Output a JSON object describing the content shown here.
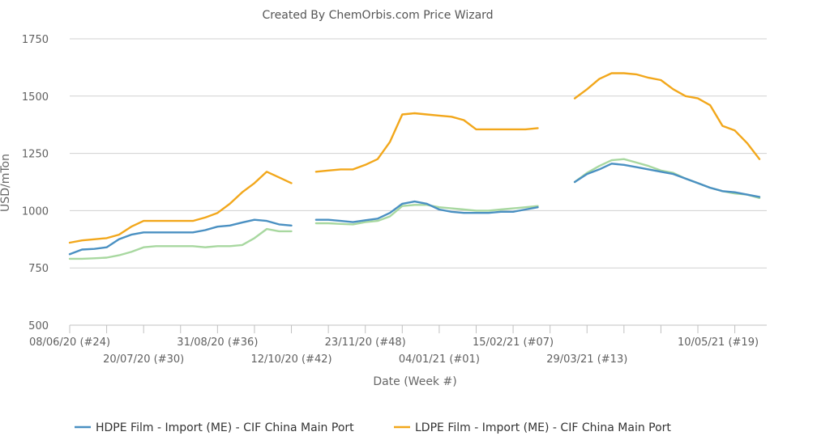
{
  "chart_data": {
    "type": "line",
    "title": "Created By ChemOrbis.com Price Wizard",
    "xlabel": "Date (Week #)",
    "ylabel": "USD/mTon",
    "ylim": [
      500,
      1750
    ],
    "yticks": [
      500,
      750,
      1000,
      1250,
      1500,
      1750
    ],
    "grid": true,
    "legend_position": "bottom",
    "x_tick_labels": [
      {
        "label": "08/06/20 (#24)",
        "week": 0,
        "row": 1
      },
      {
        "label": "20/07/20 (#30)",
        "week": 6,
        "row": 2
      },
      {
        "label": "31/08/20 (#36)",
        "week": 12,
        "row": 1
      },
      {
        "label": "12/10/20 (#42)",
        "week": 18,
        "row": 2
      },
      {
        "label": "23/11/20 (#48)",
        "week": 24,
        "row": 1
      },
      {
        "label": "04/01/21 (#01)",
        "week": 30,
        "row": 2
      },
      {
        "label": "15/02/21 (#07)",
        "week": 36,
        "row": 1
      },
      {
        "label": "29/03/21 (#13)",
        "week": 42,
        "row": 2
      },
      {
        "label": "10/05/21 (#19)",
        "week": 48,
        "row": 1
      }
    ],
    "series": [
      {
        "name": "HDPE Film - Import (ME) - CIF China Main Port",
        "color": "#4a90c2",
        "in_legend": true,
        "segments": [
          [
            [
              0,
              810
            ],
            [
              1,
              830
            ],
            [
              2,
              833
            ],
            [
              3,
              840
            ],
            [
              4,
              875
            ],
            [
              5,
              895
            ],
            [
              6,
              905
            ],
            [
              7,
              905
            ],
            [
              8,
              905
            ],
            [
              9,
              905
            ],
            [
              10,
              905
            ],
            [
              11,
              915
            ],
            [
              12,
              930
            ],
            [
              13,
              935
            ],
            [
              14,
              948
            ],
            [
              15,
              960
            ],
            [
              16,
              955
            ],
            [
              17,
              940
            ],
            [
              18,
              935
            ]
          ],
          [
            [
              20,
              960
            ],
            [
              21,
              960
            ],
            [
              22,
              955
            ],
            [
              23,
              950
            ],
            [
              24,
              958
            ],
            [
              25,
              965
            ],
            [
              26,
              990
            ],
            [
              27,
              1030
            ],
            [
              28,
              1040
            ],
            [
              29,
              1030
            ],
            [
              30,
              1005
            ],
            [
              31,
              995
            ],
            [
              32,
              990
            ],
            [
              33,
              990
            ],
            [
              34,
              990
            ],
            [
              35,
              995
            ],
            [
              36,
              995
            ],
            [
              37,
              1005
            ],
            [
              38,
              1015
            ]
          ],
          [
            [
              41,
              1125
            ],
            [
              42,
              1160
            ],
            [
              43,
              1180
            ],
            [
              44,
              1205
            ],
            [
              45,
              1200
            ],
            [
              46,
              1190
            ],
            [
              47,
              1180
            ],
            [
              48,
              1170
            ],
            [
              49,
              1160
            ],
            [
              50,
              1140
            ],
            [
              51,
              1120
            ],
            [
              52,
              1100
            ],
            [
              53,
              1085
            ],
            [
              54,
              1080
            ],
            [
              55,
              1070
            ],
            [
              56,
              1060
            ]
          ]
        ]
      },
      {
        "name": "LDPE Film - Import (ME) - CIF China Main Port",
        "color": "#f2a71b",
        "in_legend": true,
        "segments": [
          [
            [
              0,
              860
            ],
            [
              1,
              870
            ],
            [
              2,
              875
            ],
            [
              3,
              880
            ],
            [
              4,
              895
            ],
            [
              5,
              930
            ],
            [
              6,
              955
            ],
            [
              7,
              955
            ],
            [
              8,
              955
            ],
            [
              9,
              955
            ],
            [
              10,
              955
            ],
            [
              11,
              970
            ],
            [
              12,
              990
            ],
            [
              13,
              1030
            ],
            [
              14,
              1080
            ],
            [
              15,
              1120
            ],
            [
              16,
              1170
            ],
            [
              17,
              1145
            ],
            [
              18,
              1120
            ]
          ],
          [
            [
              20,
              1170
            ],
            [
              21,
              1175
            ],
            [
              22,
              1180
            ],
            [
              23,
              1180
            ],
            [
              24,
              1200
            ],
            [
              25,
              1225
            ],
            [
              26,
              1300
            ],
            [
              27,
              1420
            ],
            [
              28,
              1425
            ],
            [
              29,
              1420
            ],
            [
              30,
              1415
            ],
            [
              31,
              1410
            ],
            [
              32,
              1395
            ],
            [
              33,
              1355
            ],
            [
              34,
              1355
            ],
            [
              35,
              1355
            ],
            [
              36,
              1355
            ],
            [
              37,
              1355
            ],
            [
              38,
              1360
            ]
          ],
          [
            [
              41,
              1490
            ],
            [
              42,
              1530
            ],
            [
              43,
              1575
            ],
            [
              44,
              1600
            ],
            [
              45,
              1600
            ],
            [
              46,
              1595
            ],
            [
              47,
              1580
            ],
            [
              48,
              1570
            ],
            [
              49,
              1530
            ],
            [
              50,
              1500
            ],
            [
              51,
              1490
            ],
            [
              52,
              1460
            ],
            [
              53,
              1370
            ],
            [
              54,
              1350
            ],
            [
              55,
              1295
            ],
            [
              56,
              1225
            ]
          ]
        ]
      },
      {
        "color": "#a8d8a0",
        "in_legend": false,
        "segments": [
          [
            [
              0,
              790
            ],
            [
              1,
              790
            ],
            [
              2,
              792
            ],
            [
              3,
              795
            ],
            [
              4,
              805
            ],
            [
              5,
              820
            ],
            [
              6,
              840
            ],
            [
              7,
              845
            ],
            [
              8,
              845
            ],
            [
              9,
              845
            ],
            [
              10,
              845
            ],
            [
              11,
              840
            ],
            [
              12,
              845
            ],
            [
              13,
              845
            ],
            [
              14,
              850
            ],
            [
              15,
              880
            ],
            [
              16,
              920
            ],
            [
              17,
              910
            ],
            [
              18,
              910
            ]
          ],
          [
            [
              20,
              945
            ],
            [
              21,
              945
            ],
            [
              22,
              942
            ],
            [
              23,
              940
            ],
            [
              24,
              950
            ],
            [
              25,
              955
            ],
            [
              26,
              975
            ],
            [
              27,
              1020
            ],
            [
              28,
              1025
            ],
            [
              29,
              1025
            ],
            [
              30,
              1015
            ],
            [
              31,
              1010
            ],
            [
              32,
              1005
            ],
            [
              33,
              1000
            ],
            [
              34,
              1000
            ],
            [
              35,
              1005
            ],
            [
              36,
              1010
            ],
            [
              37,
              1015
            ],
            [
              38,
              1020
            ]
          ],
          [
            [
              41,
              1125
            ],
            [
              42,
              1165
            ],
            [
              43,
              1195
            ],
            [
              44,
              1220
            ],
            [
              45,
              1225
            ],
            [
              46,
              1210
            ],
            [
              47,
              1195
            ],
            [
              48,
              1175
            ],
            [
              49,
              1165
            ],
            [
              50,
              1140
            ],
            [
              51,
              1120
            ],
            [
              52,
              1100
            ],
            [
              53,
              1085
            ],
            [
              54,
              1075
            ],
            [
              55,
              1070
            ],
            [
              56,
              1055
            ]
          ]
        ]
      }
    ]
  }
}
